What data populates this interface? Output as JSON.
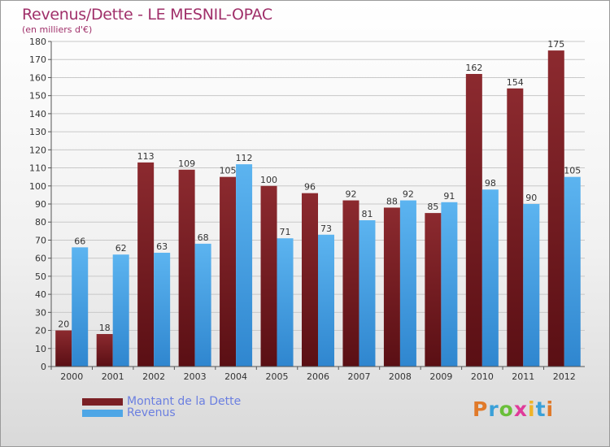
{
  "header": {
    "title": "Revenus/Dette - LE MESNIL-OPAC",
    "subtitle": "(en milliers d'€)"
  },
  "logo": {
    "text": "Proxiti",
    "letter_colors": [
      "#e07a2a",
      "#3aa0d8",
      "#6abf3a",
      "#e03a9a",
      "#f0b429",
      "#3aa0d8",
      "#e07a2a"
    ]
  },
  "colors": {
    "dette": "#7a1f24",
    "revenus": "#4ea6e6",
    "title": "#a0306a",
    "legend_text": "#6b7fe0"
  },
  "chart_data": {
    "type": "bar",
    "title": "Revenus/Dette - LE MESNIL-OPAC",
    "subtitle": "(en milliers d'€)",
    "categories": [
      "2000",
      "2001",
      "2002",
      "2003",
      "2004",
      "2005",
      "2006",
      "2007",
      "2008",
      "2009",
      "2010",
      "2011",
      "2012"
    ],
    "series": [
      {
        "name": "Montant de la Dette",
        "values": [
          20,
          18,
          113,
          109,
          105,
          100,
          96,
          92,
          88,
          85,
          162,
          154,
          175
        ]
      },
      {
        "name": "Revenus",
        "values": [
          66,
          62,
          63,
          68,
          112,
          71,
          73,
          81,
          92,
          91,
          98,
          90,
          105
        ]
      }
    ],
    "ylim": [
      0,
      180
    ],
    "yticks": [
      0,
      10,
      20,
      30,
      40,
      50,
      60,
      70,
      80,
      90,
      100,
      110,
      120,
      130,
      140,
      150,
      160,
      170,
      180
    ],
    "grid": true,
    "legend_position": "bottom-left"
  }
}
